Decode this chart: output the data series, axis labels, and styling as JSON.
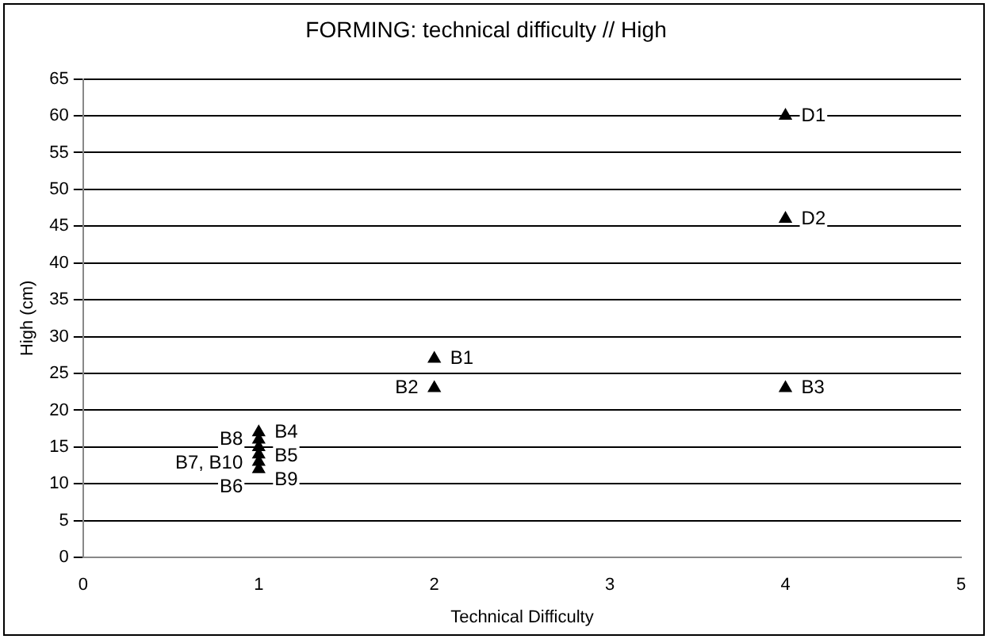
{
  "chart_data": {
    "type": "scatter",
    "title": "FORMING: technical difficulty // High",
    "xlabel": "Technical Difficulty",
    "ylabel": "High (cm)",
    "series": [
      {
        "color": "#000000",
        "x": [
          4,
          4,
          4,
          2,
          2,
          1,
          1,
          1,
          1,
          1,
          1
        ],
        "values": [
          60,
          46,
          23,
          27,
          23,
          17,
          16,
          15,
          14,
          13,
          12
        ]
      }
    ],
    "xlim": [
      0,
      5
    ],
    "xticks": [
      0,
      1,
      2,
      3,
      4,
      5
    ],
    "ylim": [
      0,
      65
    ],
    "yticks": [
      0,
      5,
      10,
      15,
      20,
      25,
      30,
      35,
      40,
      45,
      50,
      55,
      60,
      65
    ],
    "grid": "y",
    "legend": false,
    "marker": "triangle",
    "annotations": [
      {
        "text": "D1",
        "x": 4,
        "y": 60
      },
      {
        "text": "D2",
        "x": 4,
        "y": 46
      },
      {
        "text": "B3",
        "x": 4,
        "y": 23
      },
      {
        "text": "B1",
        "x": 2,
        "y": 27
      },
      {
        "text": "B2",
        "x": 2,
        "y": 23
      },
      {
        "text": "B4",
        "x": 1,
        "y": 17
      },
      {
        "text": "B8",
        "x": 1,
        "y": 16
      },
      {
        "text": "B5",
        "x": 1,
        "y": 15
      },
      {
        "text": "B7, B10",
        "x": 1,
        "y": 14
      },
      {
        "text": "B9",
        "x": 1,
        "y": 13
      },
      {
        "text": "B6",
        "x": 1,
        "y": 12
      }
    ]
  }
}
